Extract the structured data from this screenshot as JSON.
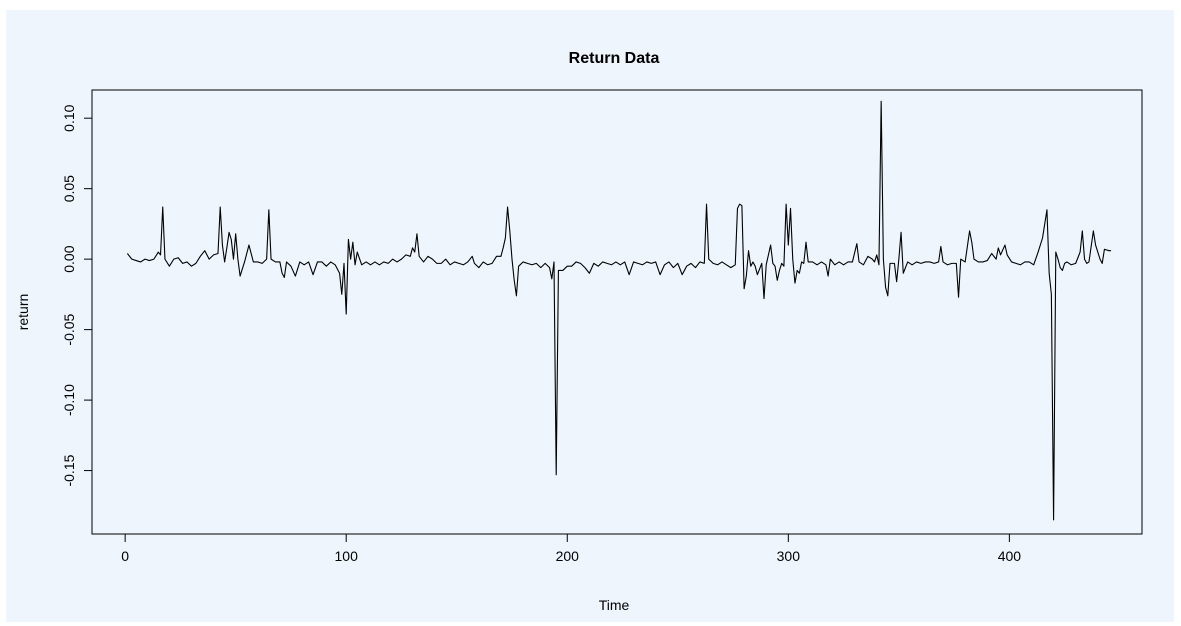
{
  "chart_data": {
    "type": "line",
    "title": "Return Data",
    "xlabel": "Time",
    "ylabel": "return",
    "xlim": [
      -15,
      460
    ],
    "ylim": [
      -0.195,
      0.12
    ],
    "x_ticks": [
      0,
      100,
      200,
      300,
      400
    ],
    "y_ticks": [
      0.1,
      0.05,
      0.0,
      -0.05,
      -0.1,
      -0.15
    ],
    "x_tick_labels": [
      "0",
      "100",
      "200",
      "300",
      "400"
    ],
    "y_tick_labels": [
      "0.10",
      "0.05",
      "0.00",
      "-0.05",
      "-0.10",
      "-0.15"
    ],
    "grid": false,
    "series": [
      {
        "color": "#000000",
        "points": [
          [
            1,
            0.004
          ],
          [
            3,
            0.0
          ],
          [
            5,
            -0.001
          ],
          [
            7,
            -0.002
          ],
          [
            9,
            0.0
          ],
          [
            11,
            -0.001
          ],
          [
            13,
            0.0
          ],
          [
            15,
            0.005
          ],
          [
            16,
            0.003
          ],
          [
            17,
            0.037
          ],
          [
            18,
            0.0
          ],
          [
            20,
            -0.005
          ],
          [
            22,
            0.0
          ],
          [
            24,
            0.001
          ],
          [
            26,
            -0.003
          ],
          [
            28,
            -0.002
          ],
          [
            30,
            -0.005
          ],
          [
            32,
            -0.003
          ],
          [
            34,
            0.002
          ],
          [
            36,
            0.006
          ],
          [
            38,
            0.0
          ],
          [
            40,
            0.003
          ],
          [
            42,
            0.004
          ],
          [
            43,
            0.037
          ],
          [
            44,
            0.01
          ],
          [
            45,
            -0.002
          ],
          [
            46,
            0.008
          ],
          [
            47,
            0.019
          ],
          [
            48,
            0.014
          ],
          [
            49,
            0.0
          ],
          [
            50,
            0.018
          ],
          [
            51,
            0.0
          ],
          [
            52,
            -0.012
          ],
          [
            54,
            -0.002
          ],
          [
            56,
            0.01
          ],
          [
            58,
            -0.002
          ],
          [
            60,
            -0.002
          ],
          [
            62,
            -0.003
          ],
          [
            64,
            0.0
          ],
          [
            65,
            0.035
          ],
          [
            66,
            0.0
          ],
          [
            68,
            -0.002
          ],
          [
            70,
            -0.002
          ],
          [
            71,
            -0.01
          ],
          [
            72,
            -0.013
          ],
          [
            73,
            -0.002
          ],
          [
            75,
            -0.005
          ],
          [
            77,
            -0.012
          ],
          [
            79,
            -0.002
          ],
          [
            81,
            -0.004
          ],
          [
            83,
            -0.002
          ],
          [
            85,
            -0.011
          ],
          [
            87,
            -0.002
          ],
          [
            89,
            -0.002
          ],
          [
            91,
            -0.005
          ],
          [
            93,
            -0.002
          ],
          [
            95,
            -0.004
          ],
          [
            97,
            -0.01
          ],
          [
            98,
            -0.025
          ],
          [
            99,
            -0.003
          ],
          [
            100,
            -0.039
          ],
          [
            101,
            0.014
          ],
          [
            102,
            0.0
          ],
          [
            103,
            0.012
          ],
          [
            104,
            -0.004
          ],
          [
            105,
            0.005
          ],
          [
            107,
            -0.004
          ],
          [
            109,
            -0.002
          ],
          [
            111,
            -0.004
          ],
          [
            113,
            -0.002
          ],
          [
            115,
            -0.004
          ],
          [
            117,
            -0.002
          ],
          [
            119,
            -0.003
          ],
          [
            121,
            0.0
          ],
          [
            123,
            -0.002
          ],
          [
            125,
            0.0
          ],
          [
            127,
            0.003
          ],
          [
            129,
            0.002
          ],
          [
            130,
            0.008
          ],
          [
            131,
            0.005
          ],
          [
            132,
            0.018
          ],
          [
            133,
            0.002
          ],
          [
            135,
            -0.002
          ],
          [
            137,
            0.002
          ],
          [
            139,
            0.0
          ],
          [
            141,
            -0.003
          ],
          [
            143,
            -0.003
          ],
          [
            145,
            0.0
          ],
          [
            147,
            -0.004
          ],
          [
            149,
            -0.002
          ],
          [
            151,
            -0.003
          ],
          [
            153,
            -0.004
          ],
          [
            155,
            -0.002
          ],
          [
            157,
            0.002
          ],
          [
            158,
            -0.003
          ],
          [
            160,
            -0.006
          ],
          [
            162,
            -0.002
          ],
          [
            164,
            -0.004
          ],
          [
            166,
            -0.003
          ],
          [
            168,
            0.002
          ],
          [
            170,
            0.002
          ],
          [
            171,
            0.008
          ],
          [
            172,
            0.015
          ],
          [
            173,
            0.037
          ],
          [
            174,
            0.02
          ],
          [
            175,
            0.0
          ],
          [
            176,
            -0.015
          ],
          [
            177,
            -0.026
          ],
          [
            178,
            -0.005
          ],
          [
            180,
            -0.002
          ],
          [
            182,
            -0.003
          ],
          [
            184,
            -0.004
          ],
          [
            186,
            -0.003
          ],
          [
            188,
            -0.006
          ],
          [
            190,
            -0.003
          ],
          [
            192,
            -0.006
          ],
          [
            193,
            -0.014
          ],
          [
            194,
            -0.002
          ],
          [
            195,
            -0.153
          ],
          [
            196,
            -0.008
          ],
          [
            198,
            -0.008
          ],
          [
            200,
            -0.005
          ],
          [
            202,
            -0.005
          ],
          [
            204,
            -0.002
          ],
          [
            206,
            -0.003
          ],
          [
            208,
            -0.006
          ],
          [
            210,
            -0.01
          ],
          [
            212,
            -0.003
          ],
          [
            214,
            -0.005
          ],
          [
            216,
            -0.002
          ],
          [
            218,
            -0.003
          ],
          [
            220,
            -0.004
          ],
          [
            222,
            -0.002
          ],
          [
            224,
            -0.004
          ],
          [
            226,
            -0.002
          ],
          [
            228,
            -0.011
          ],
          [
            230,
            -0.002
          ],
          [
            232,
            -0.003
          ],
          [
            234,
            -0.004
          ],
          [
            236,
            -0.002
          ],
          [
            238,
            -0.003
          ],
          [
            240,
            -0.002
          ],
          [
            242,
            -0.011
          ],
          [
            244,
            -0.004
          ],
          [
            246,
            -0.002
          ],
          [
            248,
            -0.006
          ],
          [
            250,
            -0.003
          ],
          [
            252,
            -0.011
          ],
          [
            254,
            -0.005
          ],
          [
            256,
            -0.003
          ],
          [
            258,
            -0.006
          ],
          [
            260,
            -0.002
          ],
          [
            262,
            -0.003
          ],
          [
            263,
            0.039
          ],
          [
            264,
            0.0
          ],
          [
            266,
            -0.003
          ],
          [
            268,
            -0.004
          ],
          [
            270,
            -0.002
          ],
          [
            272,
            -0.004
          ],
          [
            274,
            -0.006
          ],
          [
            276,
            -0.004
          ],
          [
            277,
            0.036
          ],
          [
            278,
            0.039
          ],
          [
            279,
            0.038
          ],
          [
            280,
            -0.021
          ],
          [
            281,
            -0.012
          ],
          [
            282,
            0.006
          ],
          [
            283,
            -0.005
          ],
          [
            284,
            -0.002
          ],
          [
            285,
            -0.005
          ],
          [
            286,
            -0.011
          ],
          [
            288,
            -0.003
          ],
          [
            289,
            -0.028
          ],
          [
            290,
            -0.004
          ],
          [
            292,
            0.01
          ],
          [
            293,
            -0.003
          ],
          [
            294,
            -0.005
          ],
          [
            295,
            -0.015
          ],
          [
            296,
            -0.008
          ],
          [
            297,
            -0.003
          ],
          [
            298,
            -0.005
          ],
          [
            299,
            0.039
          ],
          [
            300,
            0.01
          ],
          [
            301,
            0.036
          ],
          [
            302,
            0.0
          ],
          [
            303,
            -0.017
          ],
          [
            304,
            -0.008
          ],
          [
            305,
            -0.01
          ],
          [
            306,
            -0.002
          ],
          [
            307,
            -0.003
          ],
          [
            308,
            0.012
          ],
          [
            309,
            -0.002
          ],
          [
            311,
            -0.002
          ],
          [
            313,
            -0.004
          ],
          [
            315,
            -0.002
          ],
          [
            317,
            -0.004
          ],
          [
            318,
            -0.012
          ],
          [
            319,
            0.0
          ],
          [
            321,
            -0.004
          ],
          [
            323,
            -0.002
          ],
          [
            325,
            -0.004
          ],
          [
            327,
            -0.002
          ],
          [
            329,
            -0.002
          ],
          [
            331,
            0.011
          ],
          [
            332,
            -0.002
          ],
          [
            334,
            -0.004
          ],
          [
            336,
            0.002
          ],
          [
            338,
            0.0
          ],
          [
            339,
            -0.002
          ],
          [
            340,
            0.003
          ],
          [
            341,
            -0.004
          ],
          [
            342,
            0.112
          ],
          [
            343,
            0.0
          ],
          [
            344,
            -0.02
          ],
          [
            345,
            -0.026
          ],
          [
            346,
            -0.003
          ],
          [
            348,
            -0.003
          ],
          [
            349,
            -0.016
          ],
          [
            350,
            0.0
          ],
          [
            351,
            0.019
          ],
          [
            352,
            -0.01
          ],
          [
            354,
            -0.002
          ],
          [
            356,
            -0.004
          ],
          [
            358,
            -0.002
          ],
          [
            360,
            -0.003
          ],
          [
            362,
            -0.002
          ],
          [
            364,
            -0.002
          ],
          [
            366,
            -0.003
          ],
          [
            368,
            -0.002
          ],
          [
            369,
            0.009
          ],
          [
            370,
            -0.002
          ],
          [
            372,
            -0.004
          ],
          [
            374,
            -0.003
          ],
          [
            376,
            -0.003
          ],
          [
            377,
            -0.027
          ],
          [
            378,
            0.0
          ],
          [
            380,
            -0.002
          ],
          [
            382,
            0.02
          ],
          [
            383,
            0.012
          ],
          [
            384,
            0.0
          ],
          [
            386,
            -0.002
          ],
          [
            388,
            -0.002
          ],
          [
            390,
            -0.001
          ],
          [
            392,
            0.004
          ],
          [
            394,
            0.0
          ],
          [
            395,
            0.008
          ],
          [
            396,
            0.003
          ],
          [
            398,
            0.01
          ],
          [
            399,
            0.003
          ],
          [
            401,
            -0.002
          ],
          [
            403,
            -0.003
          ],
          [
            405,
            -0.004
          ],
          [
            407,
            -0.002
          ],
          [
            409,
            -0.002
          ],
          [
            411,
            -0.004
          ],
          [
            413,
            0.005
          ],
          [
            415,
            0.015
          ],
          [
            417,
            0.035
          ],
          [
            418,
            -0.01
          ],
          [
            419,
            -0.025
          ],
          [
            420,
            -0.185
          ],
          [
            421,
            0.005
          ],
          [
            422,
            0.0
          ],
          [
            423,
            -0.006
          ],
          [
            424,
            -0.008
          ],
          [
            425,
            -0.003
          ],
          [
            426,
            -0.002
          ],
          [
            428,
            -0.004
          ],
          [
            430,
            -0.003
          ],
          [
            432,
            0.005
          ],
          [
            433,
            0.02
          ],
          [
            434,
            0.0
          ],
          [
            435,
            -0.003
          ],
          [
            436,
            -0.002
          ],
          [
            438,
            0.02
          ],
          [
            439,
            0.01
          ],
          [
            440,
            0.005
          ],
          [
            441,
            0.0
          ],
          [
            442,
            -0.003
          ],
          [
            443,
            0.007
          ],
          [
            445,
            0.006
          ],
          [
            446,
            0.006
          ]
        ]
      }
    ]
  }
}
